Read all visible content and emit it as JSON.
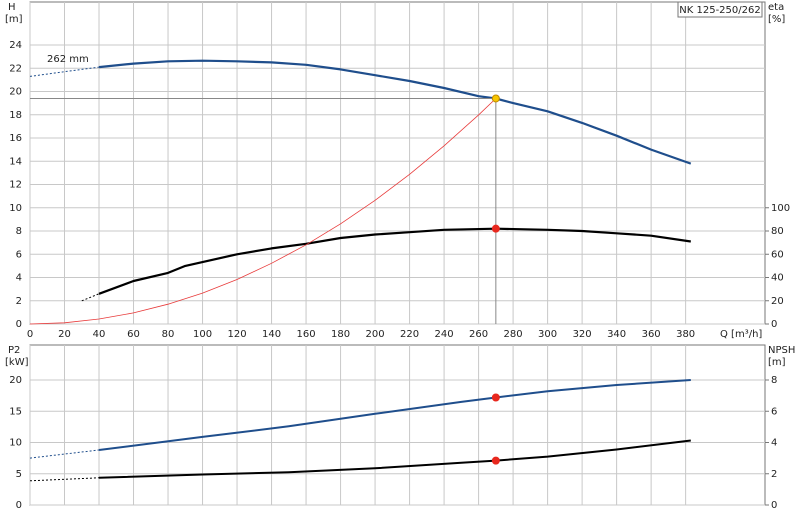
{
  "chart_data": [
    {
      "type": "line",
      "title": "NK 125-250/262",
      "ylabel": "H",
      "yunit": "[m]",
      "y2label": "eta",
      "y2unit": "[%]",
      "xlabel": "Q [m³/h]",
      "xlim": [
        0,
        426
      ],
      "xticks": [
        0,
        20,
        40,
        60,
        80,
        100,
        120,
        140,
        160,
        180,
        200,
        220,
        240,
        260,
        280,
        300,
        320,
        340,
        360,
        380
      ],
      "ylim": [
        0,
        27.7
      ],
      "yticks": [
        0,
        2,
        4,
        6,
        8,
        10,
        12,
        14,
        16,
        18,
        20,
        22,
        24
      ],
      "y2lim": [
        0,
        277
      ],
      "y2ticks": [
        0,
        20,
        40,
        60,
        80,
        100
      ],
      "grid": true,
      "show_xtick_labels": true,
      "series": [
        {
          "name": "262 mm",
          "color": "#1f4e8c",
          "width": 2.2,
          "style": "solid",
          "axis": "y",
          "x": [
            40,
            60,
            80,
            100,
            120,
            140,
            160,
            180,
            200,
            220,
            240,
            260,
            270,
            280,
            300,
            320,
            340,
            360,
            383
          ],
          "values": [
            22.1,
            22.4,
            22.6,
            22.65,
            22.6,
            22.5,
            22.3,
            21.9,
            21.4,
            20.9,
            20.3,
            19.6,
            19.4,
            19.0,
            18.3,
            17.3,
            16.2,
            15.0,
            13.8
          ]
        },
        {
          "color": "#1f4e8c",
          "width": 1,
          "style": "dashed",
          "axis": "y",
          "x": [
            0,
            20,
            40
          ],
          "values": [
            21.3,
            21.7,
            22.1
          ]
        },
        {
          "color": "#000000",
          "width": 2.2,
          "style": "solid",
          "axis": "y2",
          "x": [
            40,
            60,
            80,
            90,
            120,
            140,
            160,
            180,
            200,
            220,
            240,
            270,
            300,
            320,
            340,
            360,
            383
          ],
          "values": [
            26,
            37,
            44,
            50,
            60,
            65,
            69,
            74,
            77,
            79,
            81,
            82,
            81,
            80,
            78,
            76,
            71
          ]
        },
        {
          "color": "#000000",
          "width": 1,
          "style": "dashed",
          "axis": "y2",
          "x": [
            30,
            40
          ],
          "values": [
            20,
            26
          ]
        },
        {
          "color": "#e83a3a",
          "width": 0.8,
          "style": "solid",
          "axis": "y",
          "x": [
            0,
            20,
            40,
            60,
            80,
            100,
            120,
            140,
            160,
            180,
            200,
            220,
            240,
            260,
            270
          ],
          "values": [
            0,
            0.106,
            0.426,
            0.958,
            1.7,
            2.66,
            3.83,
            5.22,
            6.81,
            8.62,
            10.64,
            12.88,
            15.33,
            17.99,
            19.4
          ]
        }
      ],
      "points": [
        {
          "x": 270,
          "y": 19.4,
          "color": "#f7c600",
          "axis": "y",
          "crosshair": true
        },
        {
          "x": 270,
          "y": 82,
          "color": "#e8281e",
          "axis": "y2",
          "crosshair": false
        }
      ]
    },
    {
      "type": "line",
      "ylabel": "P2",
      "yunit": "[kW]",
      "y2label": "NPSH",
      "y2unit": "[m]",
      "xlim": [
        0,
        426
      ],
      "xticks": [
        0,
        20,
        40,
        60,
        80,
        100,
        120,
        140,
        160,
        180,
        200,
        220,
        240,
        260,
        280,
        300,
        320,
        340,
        360,
        380
      ],
      "ylim": [
        0,
        25.6
      ],
      "yticks": [
        0,
        5,
        10,
        15,
        20
      ],
      "y2lim": [
        0,
        10.24
      ],
      "y2ticks": [
        0,
        2,
        4,
        6,
        8
      ],
      "grid": true,
      "show_xtick_labels": false,
      "series": [
        {
          "color": "#1f4e8c",
          "width": 2,
          "style": "solid",
          "axis": "y",
          "x": [
            40,
            100,
            150,
            200,
            250,
            270,
            300,
            340,
            383
          ],
          "values": [
            8.8,
            10.9,
            12.6,
            14.6,
            16.5,
            17.2,
            18.2,
            19.2,
            20.0
          ]
        },
        {
          "color": "#1f4e8c",
          "width": 1,
          "style": "dashed",
          "axis": "y",
          "x": [
            0,
            40
          ],
          "values": [
            7.5,
            8.8
          ]
        },
        {
          "color": "#000000",
          "width": 2,
          "style": "solid",
          "axis": "y2",
          "x": [
            40,
            100,
            150,
            200,
            250,
            270,
            300,
            340,
            383
          ],
          "values": [
            1.74,
            1.95,
            2.1,
            2.35,
            2.7,
            2.84,
            3.1,
            3.55,
            4.13
          ]
        },
        {
          "color": "#000000",
          "width": 1,
          "style": "dashed",
          "axis": "y2",
          "x": [
            0,
            40
          ],
          "values": [
            1.55,
            1.74
          ]
        }
      ],
      "points": [
        {
          "x": 270,
          "y": 17.2,
          "color": "#e8281e",
          "axis": "y",
          "crosshair": false
        },
        {
          "x": 270,
          "y": 2.84,
          "color": "#e8281e",
          "axis": "y2",
          "crosshair": false
        }
      ]
    }
  ]
}
